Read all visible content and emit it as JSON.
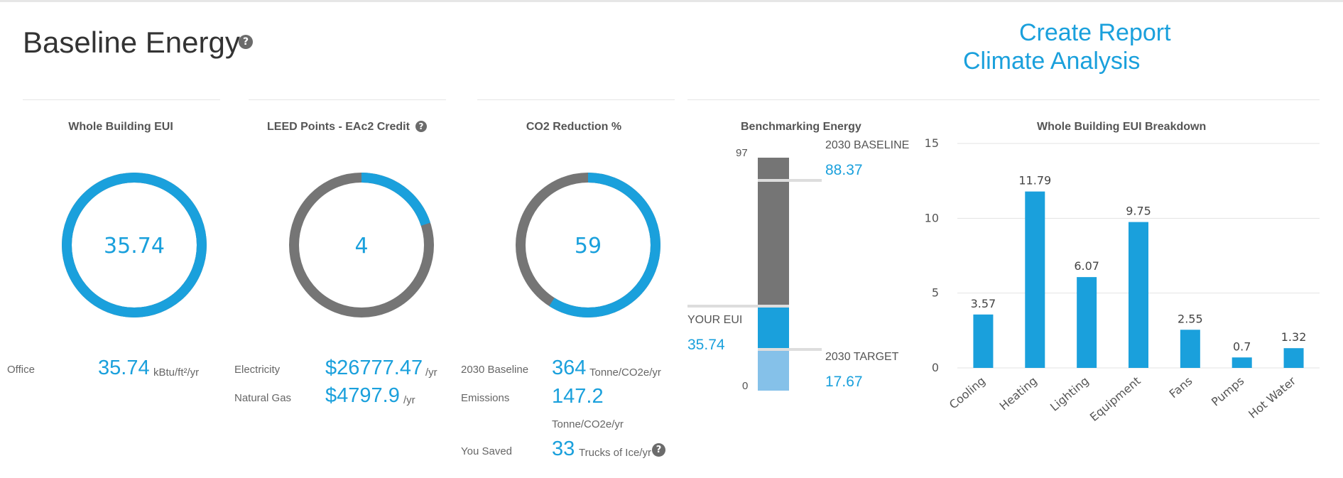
{
  "page": {
    "title": "Baseline Energy",
    "create_report": "Create Report",
    "climate_analysis": "Climate Analysis"
  },
  "colors": {
    "accent": "#1aa0dc",
    "ring_gray": "#757575",
    "light_blue": "#85c1e9"
  },
  "eui": {
    "title": "Whole Building EUI",
    "value": "35.74",
    "fraction": 1.0,
    "row_label": "Office",
    "row_value": "35.74",
    "row_unit": "kBtu/ft²/yr"
  },
  "leed": {
    "title": "LEED Points - EAc2 Credit",
    "value": "4",
    "fraction": 0.2,
    "rows": [
      {
        "label": "Electricity",
        "value": "$26777.47",
        "unit": "/yr"
      },
      {
        "label": "Natural Gas",
        "value": "$4797.9",
        "unit": "/yr"
      }
    ]
  },
  "co2": {
    "title": "CO2 Reduction %",
    "value": "59",
    "fraction": 0.59,
    "baseline_label": "2030 Baseline",
    "baseline_value": "364",
    "baseline_unit": "Tonne/CO2e/yr",
    "emissions_label": "Emissions",
    "emissions_value": "147.2",
    "emissions_unit": "Tonne/CO2e/yr",
    "saved_label": "You Saved",
    "saved_value": "33",
    "saved_unit": "Trucks of Ice/yr"
  },
  "bench": {
    "title": "Benchmarking Energy",
    "scale_max": "97",
    "scale_min": "0",
    "baseline_label": "2030 BASELINE",
    "baseline_value": "88.37",
    "your_label": "YOUR EUI",
    "your_value": "35.74",
    "target_label": "2030 TARGET",
    "target_value": "17.67"
  },
  "chart_data": {
    "type": "bar",
    "title": "Whole Building EUI Breakdown",
    "categories": [
      "Cooling",
      "Heating",
      "Lighting",
      "Equipment",
      "Fans",
      "Pumps",
      "Hot Water"
    ],
    "values": [
      3.57,
      11.79,
      6.07,
      9.75,
      2.55,
      0.7,
      1.32
    ],
    "value_labels": [
      "3.57",
      "11.79",
      "6.07",
      "9.75",
      "2.55",
      "0.7",
      "1.32"
    ],
    "y_ticks": [
      "0",
      "5",
      "10",
      "15"
    ],
    "ylim": [
      0,
      15
    ],
    "xlabel": "",
    "ylabel": "",
    "grid": true,
    "color": "#1aa0dc"
  }
}
